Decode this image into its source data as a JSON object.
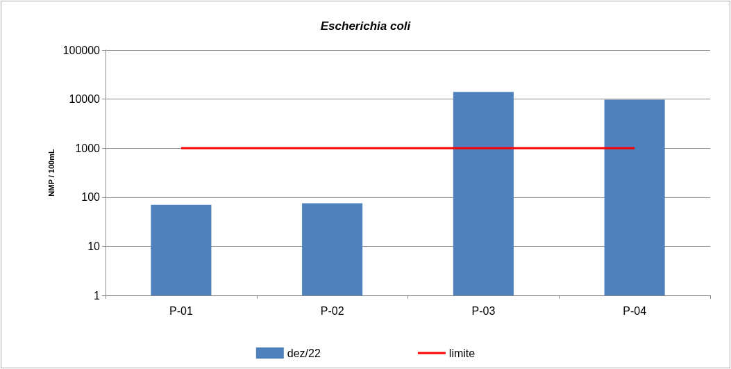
{
  "chart_data": {
    "type": "bar",
    "title": "Escherichia coli",
    "ylabel": "NMP / 100mL",
    "categories": [
      "P-01",
      "P-02",
      "P-03",
      "P-04"
    ],
    "series": [
      {
        "name": "dez/22",
        "color": "#4f81bd",
        "values": [
          70,
          75,
          14000,
          9700
        ]
      },
      {
        "name": "limite",
        "type": "line",
        "color": "#ff0000",
        "values": [
          1000,
          1000,
          1000,
          1000
        ]
      }
    ],
    "log": true,
    "ylim": [
      1,
      100000
    ],
    "yticks": [
      1,
      10,
      100,
      1000,
      10000,
      100000
    ],
    "grid": "y",
    "legend": "bottom",
    "marker": "none",
    "line_style": "solid"
  }
}
